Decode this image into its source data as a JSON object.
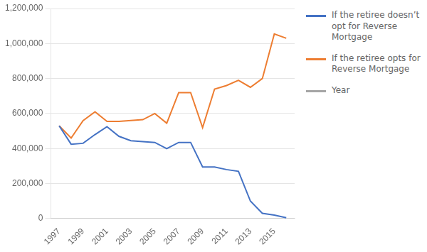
{
  "chart_data": {
    "type": "line",
    "x": [
      1997,
      1998,
      1999,
      2000,
      2001,
      2002,
      2003,
      2004,
      2005,
      2006,
      2007,
      2008,
      2009,
      2010,
      2011,
      2012,
      2013,
      2014,
      2015,
      2016
    ],
    "series": [
      {
        "name": "If the retiree doesn’t\nopt for Reverse\nMortgage",
        "color": "#4472C4",
        "values": [
          530000,
          425000,
          430000,
          480000,
          525000,
          470000,
          445000,
          440000,
          435000,
          400000,
          435000,
          435000,
          295000,
          295000,
          280000,
          270000,
          100000,
          30000,
          20000,
          5000
        ]
      },
      {
        "name": "If the retiree opts for\nReverse Mortgage",
        "color": "#ED7D31",
        "values": [
          530000,
          460000,
          560000,
          610000,
          555000,
          555000,
          560000,
          565000,
          600000,
          545000,
          720000,
          720000,
          520000,
          740000,
          760000,
          790000,
          750000,
          800000,
          1055000,
          1030000
        ]
      },
      {
        "name": "Year",
        "color": "#A5A5A5",
        "values": [
          null,
          null,
          null,
          null,
          null,
          null,
          null,
          null,
          null,
          null,
          null,
          null,
          null,
          null,
          null,
          null,
          null,
          null,
          null,
          null
        ]
      }
    ],
    "xlim": [
      1996.3,
      2016.7
    ],
    "xticks": [
      1997,
      1999,
      2001,
      2003,
      2005,
      2007,
      2009,
      2011,
      2013,
      2015
    ],
    "ylim": [
      0,
      1200000
    ],
    "yticks": [
      0,
      {
        "value": 200000,
        "label": "200,000"
      },
      {
        "value": 400000,
        "label": "400,000"
      },
      {
        "value": 600000,
        "label": "600,000"
      },
      {
        "value": 800000,
        "label": "800,000"
      },
      {
        "value": 1000000,
        "label": "1,000,000"
      },
      {
        "value": 1200000,
        "label": "1,200,000"
      }
    ],
    "grid": "y",
    "legend": "right"
  }
}
